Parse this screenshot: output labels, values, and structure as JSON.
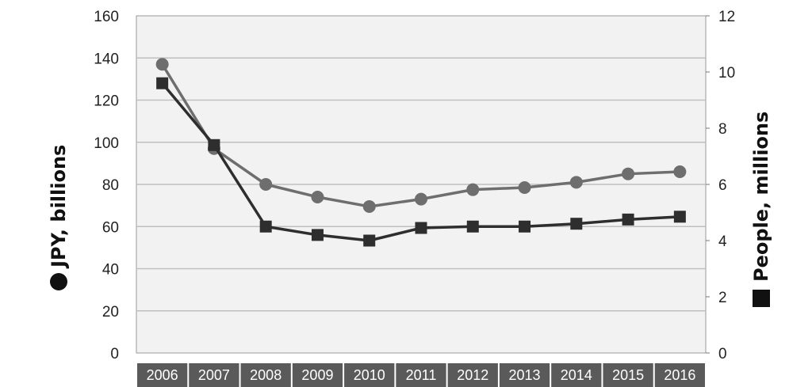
{
  "chart_data": {
    "type": "line",
    "categories": [
      "2006",
      "2007",
      "2008",
      "2009",
      "2010",
      "2011",
      "2012",
      "2013",
      "2014",
      "2015",
      "2016"
    ],
    "series": [
      {
        "name": "JPY, billions",
        "axis": "left",
        "marker": "circle",
        "color": "#6e6e6e",
        "values": [
          137,
          97,
          80,
          74,
          69.5,
          73,
          77.5,
          78.5,
          81,
          85,
          86
        ]
      },
      {
        "name": "People, millions",
        "axis": "right",
        "marker": "square",
        "color": "#2e2e2e",
        "values": [
          9.6,
          7.4,
          4.5,
          4.2,
          4.0,
          4.45,
          4.5,
          4.5,
          4.6,
          4.75,
          4.85
        ]
      }
    ],
    "ylabel_left": "JPY, billions",
    "ylabel_right": "People, millions",
    "ylim_left": [
      0,
      160
    ],
    "ylim_right": [
      0,
      12
    ],
    "yticks_left": [
      "0",
      "20",
      "40",
      "60",
      "80",
      "100",
      "120",
      "140",
      "160"
    ],
    "yticks_right": [
      "0",
      "2",
      "4",
      "6",
      "8",
      "10",
      "12"
    ],
    "grid": true,
    "legend": "axis-titles",
    "colors": {
      "background": "#ffffff",
      "plot_background": "#f2f2f2",
      "gridline": "#bfbfbf",
      "category_band": "#5a5a5a"
    }
  }
}
